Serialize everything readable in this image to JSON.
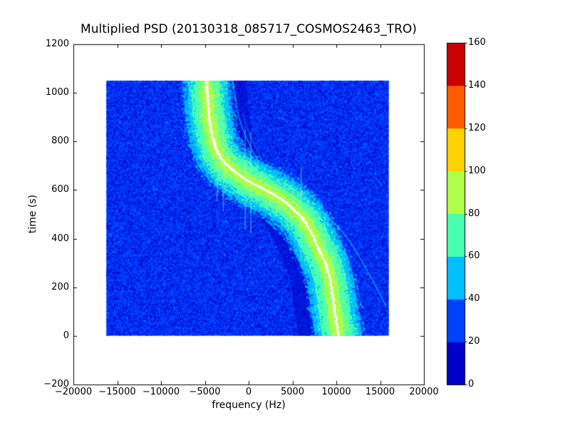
{
  "chart_data": {
    "type": "heatmap",
    "title": "Multiplied PSD (20130318_085717_COSMOS2463_TRO)",
    "xlabel": "frequency (Hz)",
    "ylabel": "time (s)",
    "xlim": [
      -20000,
      20000
    ],
    "ylim": [
      -200,
      1200
    ],
    "grid": false,
    "xticks": {
      "values": [
        -20000,
        -15000,
        -10000,
        -5000,
        0,
        5000,
        10000,
        15000,
        20000
      ],
      "labels": [
        "−20000",
        "−15000",
        "−10000",
        "−5000",
        "0",
        "5000",
        "10000",
        "15000",
        "20000"
      ]
    },
    "yticks": {
      "values": [
        -200,
        0,
        200,
        400,
        600,
        800,
        1000,
        1200
      ],
      "labels": [
        "−200",
        "0",
        "200",
        "400",
        "600",
        "800",
        "1000",
        "1200"
      ]
    },
    "colorbar": {
      "vmin": 0,
      "vmax": 160,
      "tick_values": [
        0,
        20,
        40,
        60,
        80,
        100,
        120,
        140,
        160
      ],
      "tick_labels": [
        "0",
        "20",
        "40",
        "60",
        "80",
        "100",
        "120",
        "140",
        "160"
      ],
      "segment_colors_low_to_high": [
        "#0000c8",
        "#0040ff",
        "#00bfff",
        "#48ffb0",
        "#afff48",
        "#ffd200",
        "#ff5c00",
        "#c80000"
      ]
    },
    "data_extent": {
      "freq": [
        -16250,
        16000
      ],
      "time": [
        0,
        1050
      ]
    },
    "noise": {
      "base_color": "#0040ff",
      "dark_color": "#0000c8",
      "dark_fraction": 0.3,
      "bright_color": "#00bfff",
      "bright_fraction": 0.006
    },
    "doppler_track": {
      "description": "white peak ridge of the PSD, points are [time s, frequency Hz]",
      "points": [
        [
          0,
          10250
        ],
        [
          120,
          9750
        ],
        [
          260,
          9100
        ],
        [
          380,
          7700
        ],
        [
          470,
          6400
        ],
        [
          520,
          5100
        ],
        [
          560,
          3800
        ],
        [
          600,
          1900
        ],
        [
          640,
          -200
        ],
        [
          690,
          -2100
        ],
        [
          740,
          -3300
        ],
        [
          800,
          -4000
        ],
        [
          900,
          -4500
        ],
        [
          1000,
          -4720
        ],
        [
          1050,
          -4800
        ]
      ],
      "peak_color": "#ffffff",
      "band_levels": [
        {
          "halfwidth_hz": 2680,
          "color": "#00bfff"
        },
        {
          "halfwidth_hz": 1830,
          "color": "#48ffb0"
        },
        {
          "halfwidth_hz": 815,
          "color": "#afff48"
        },
        {
          "halfwidth_hz": 240,
          "color": "#ffd200"
        }
      ],
      "shadow": {
        "offset_hz": 3500,
        "width_hz": 1950,
        "color": "#0000c8"
      }
    },
    "artifacts": {
      "alias_line": {
        "color": "#00cfff",
        "points": [
          [
            120,
            15700
          ],
          [
            250,
            13800
          ],
          [
            400,
            11300
          ],
          [
            500,
            8600
          ],
          [
            599,
            4390
          ],
          [
            669,
            1950
          ],
          [
            745,
            650
          ],
          [
            883,
            -976
          ],
          [
            1000,
            -1600
          ],
          [
            1050,
            -1850
          ]
        ]
      },
      "alias_line2": {
        "offset_hz": 550,
        "t_range": [
          560,
          920
        ]
      },
      "streak": {
        "from": [
          480,
          -7200
        ],
        "to": [
          600,
          -3400
        ]
      },
      "vertical_streak_freqs": [
        -3600,
        -2900,
        -400,
        250,
        6000,
        8700,
        9700
      ]
    }
  }
}
